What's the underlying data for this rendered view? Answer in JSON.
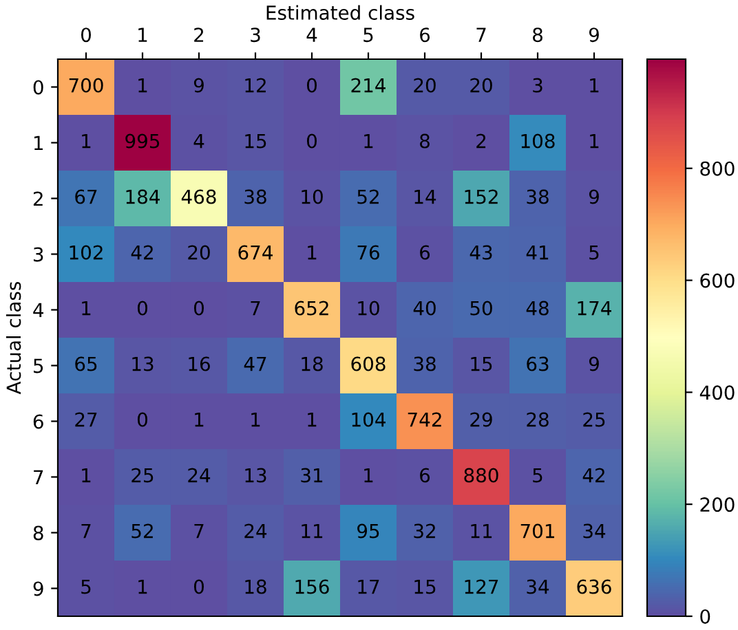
{
  "chart_data": {
    "type": "heatmap",
    "xlabel": "Estimated class",
    "ylabel": "Actual class",
    "categories": [
      "0",
      "1",
      "2",
      "3",
      "4",
      "5",
      "6",
      "7",
      "8",
      "9"
    ],
    "y_categories": [
      "0",
      "1",
      "2",
      "3",
      "4",
      "5",
      "6",
      "7",
      "8",
      "9"
    ],
    "cells": [
      [
        700,
        1,
        9,
        12,
        0,
        214,
        20,
        20,
        3,
        1
      ],
      [
        1,
        995,
        4,
        15,
        0,
        1,
        8,
        2,
        108,
        1
      ],
      [
        67,
        184,
        468,
        38,
        10,
        52,
        14,
        152,
        38,
        9
      ],
      [
        102,
        42,
        20,
        674,
        1,
        76,
        6,
        43,
        41,
        5
      ],
      [
        1,
        0,
        0,
        7,
        652,
        10,
        40,
        50,
        48,
        174
      ],
      [
        65,
        13,
        16,
        47,
        18,
        608,
        38,
        15,
        63,
        9
      ],
      [
        27,
        0,
        1,
        1,
        1,
        104,
        742,
        29,
        28,
        25
      ],
      [
        1,
        25,
        24,
        13,
        31,
        1,
        6,
        880,
        5,
        42
      ],
      [
        7,
        52,
        7,
        24,
        11,
        95,
        32,
        11,
        701,
        34
      ],
      [
        5,
        1,
        0,
        18,
        156,
        17,
        15,
        127,
        34,
        636
      ]
    ],
    "clim": [
      0,
      995
    ],
    "cticks": [
      0,
      200,
      400,
      600,
      800
    ],
    "data_labels": true
  }
}
